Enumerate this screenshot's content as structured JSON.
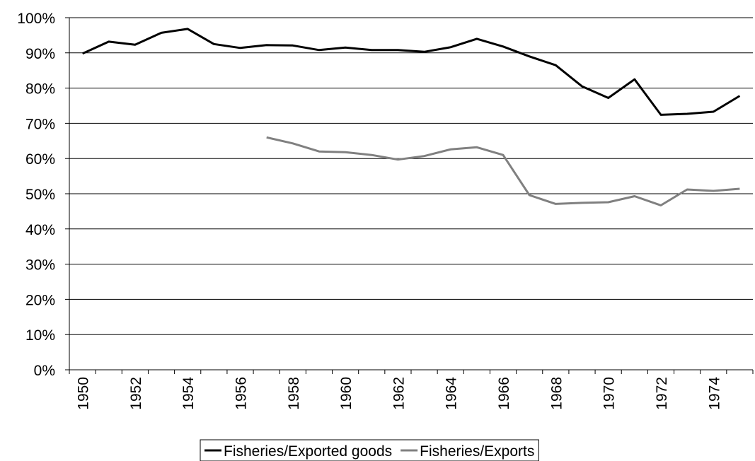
{
  "chart_data": {
    "type": "line",
    "categories": [
      "1950",
      null,
      "1952",
      null,
      "1954",
      null,
      "1956",
      null,
      "1958",
      null,
      "1960",
      null,
      "1962",
      null,
      "1964",
      null,
      "1966",
      null,
      "1968",
      null,
      "1970",
      null,
      "1972",
      null,
      "1974",
      null
    ],
    "series": [
      {
        "name": "Fisheries/Exported goods",
        "color": "#000000",
        "values": [
          89.8,
          93.2,
          92.3,
          95.7,
          96.8,
          92.5,
          91.4,
          92.2,
          92.1,
          90.8,
          91.5,
          90.8,
          90.8,
          90.3,
          91.6,
          94.0,
          91.8,
          89.0,
          86.5,
          80.5,
          77.2,
          82.5,
          72.4,
          72.7,
          73.3,
          77.8
        ]
      },
      {
        "name": "Fisheries/Exports",
        "color": "#808080",
        "values": [
          null,
          null,
          null,
          null,
          null,
          null,
          null,
          66.0,
          64.3,
          62.0,
          61.8,
          61.0,
          59.7,
          60.7,
          62.6,
          63.2,
          61.0,
          49.6,
          47.1,
          47.4,
          47.6,
          49.3,
          46.7,
          51.2,
          50.8,
          51.4
        ]
      }
    ],
    "ylim": [
      0,
      100
    ],
    "yticks": [
      {
        "value": 0,
        "label": "0%"
      },
      {
        "value": 10,
        "label": "10%"
      },
      {
        "value": 20,
        "label": "20%"
      },
      {
        "value": 30,
        "label": "30%"
      },
      {
        "value": 40,
        "label": "40%"
      },
      {
        "value": 50,
        "label": "50%"
      },
      {
        "value": 60,
        "label": "60%"
      },
      {
        "value": 70,
        "label": "70%"
      },
      {
        "value": 80,
        "label": "80%"
      },
      {
        "value": 90,
        "label": "90%"
      },
      {
        "value": 100,
        "label": "100%"
      }
    ],
    "grid": true,
    "legend": "bottom"
  }
}
